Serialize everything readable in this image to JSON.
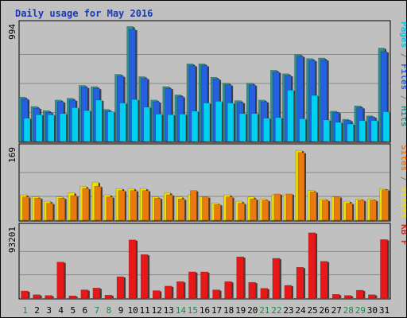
{
  "chart_data": {
    "type": "bar",
    "title": "Daily usage for May 2016",
    "categories": [
      "1",
      "2",
      "3",
      "4",
      "5",
      "6",
      "7",
      "8",
      "9",
      "10",
      "11",
      "12",
      "13",
      "14",
      "15",
      "16",
      "17",
      "18",
      "19",
      "20",
      "21",
      "22",
      "23",
      "24",
      "25",
      "26",
      "27",
      "28",
      "29",
      "30",
      "31"
    ],
    "weekend_days": [
      "1",
      "7",
      "8",
      "14",
      "15",
      "21",
      "22",
      "28",
      "29"
    ],
    "panels": [
      {
        "id": "hits",
        "ymax_label": "994",
        "ymax": 994,
        "right_labels": [
          {
            "text": "Pages",
            "color": "#00c8e8"
          },
          {
            "text": " / ",
            "color": "#7a7a7a"
          },
          {
            "text": "Files",
            "color": "#2560e0"
          },
          {
            "text": " / ",
            "color": "#7a7a7a"
          },
          {
            "text": "Hits",
            "color": "#2f8f8f"
          }
        ],
        "series": [
          {
            "name": "Hits",
            "color": "#2f8f8f",
            "values": [
              380,
              300,
              265,
              355,
              370,
              480,
              470,
              275,
              575,
              985,
              555,
              355,
              470,
              400,
              665,
              665,
              550,
              500,
              350,
              500,
              355,
              610,
              580,
              745,
              710,
              715,
              260,
              190,
              305,
              220,
              800
            ]
          },
          {
            "name": "Files",
            "color": "#2560e0",
            "values": [
              365,
              285,
              250,
              340,
              355,
              465,
              455,
              260,
              560,
              960,
              540,
              340,
              455,
              385,
              650,
              650,
              535,
              485,
              335,
              485,
              340,
              595,
              565,
              730,
              695,
              700,
              250,
              180,
              290,
              210,
              770
            ]
          },
          {
            "name": "Pages",
            "color": "#00d0f0",
            "values": [
              200,
              230,
              230,
              240,
              290,
              265,
              355,
              255,
              330,
              360,
              295,
              235,
              230,
              235,
              260,
              330,
              345,
              330,
              240,
              240,
              200,
              205,
              440,
              195,
              395,
              185,
              165,
              150,
              180,
              180,
              255
            ]
          }
        ]
      },
      {
        "id": "visits",
        "ymax_label": "169",
        "ymax": 169,
        "right_labels": [
          {
            "text": "Sites",
            "color": "#e87a10"
          },
          {
            "text": " / ",
            "color": "#7a7a7a"
          },
          {
            "text": "Visits",
            "color": "#f0e000"
          }
        ],
        "series": [
          {
            "name": "Visits",
            "color": "#f0e000",
            "values": [
              60,
              55,
              45,
              55,
              65,
              80,
              90,
              60,
              75,
              75,
              75,
              55,
              65,
              55,
              60,
              55,
              40,
              60,
              45,
              55,
              50,
              60,
              60,
              165,
              70,
              50,
              55,
              45,
              50,
              50,
              75
            ]
          },
          {
            "name": "Sites",
            "color": "#e87a10",
            "values": [
              55,
              52,
              40,
              52,
              58,
              75,
              80,
              55,
              70,
              70,
              70,
              52,
              60,
              50,
              70,
              55,
              37,
              55,
              40,
              50,
              47,
              62,
              62,
              160,
              67,
              47,
              55,
              40,
              47,
              47,
              72
            ]
          }
        ]
      },
      {
        "id": "kbf",
        "ymax_label": "93201",
        "ymax": 93201,
        "right_labels": [
          {
            "text": "KB F",
            "color": "#e82020"
          }
        ],
        "series": [
          {
            "name": "KB F",
            "color": "#e81818",
            "values": [
              9500,
              4500,
              3500,
              48000,
              3000,
              11000,
              13500,
              4000,
              28500,
              77500,
              58000,
              10000,
              16000,
              22000,
              35000,
              35000,
              11000,
              22000,
              55000,
              21000,
              13000,
              53000,
              17000,
              41000,
              87000,
              49000,
              5000,
              3500,
              10500,
              4500,
              78000
            ]
          }
        ]
      }
    ]
  }
}
